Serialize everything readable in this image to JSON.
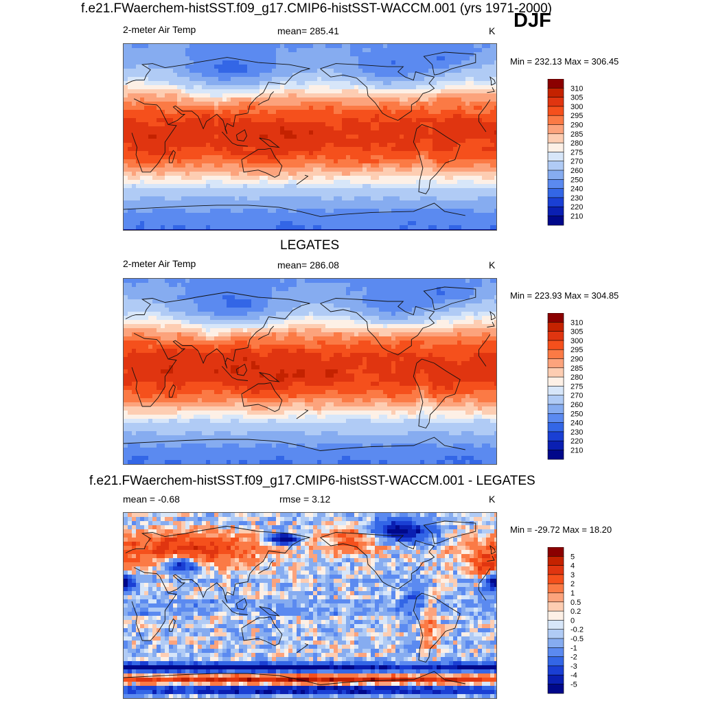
{
  "header": {
    "title": "f.e21.FWaerchem-histSST.f09_g17.CMIP6-histSST-WACCM.001 (yrs 1971-2000)",
    "season": "DJF"
  },
  "chart_data": [
    {
      "type": "heatmap",
      "panel_title": "",
      "variable": "2-meter Air Temp",
      "stat_label": "mean=",
      "stat_value": "285.41",
      "units": "K",
      "min_max": "Min = 232.13 Max = 306.45",
      "colorbar_levels": [
        "310",
        "305",
        "300",
        "295",
        "290",
        "285",
        "280",
        "275",
        "270",
        "260",
        "250",
        "240",
        "230",
        "220",
        "210"
      ],
      "colorbar_colors": [
        "#8b0000",
        "#c42200",
        "#e03510",
        "#f5501c",
        "#fb7a45",
        "#fca37c",
        "#fdcdb2",
        "#fdf0e6",
        "#d7e6f9",
        "#b0cbf5",
        "#86acf0",
        "#5b8af0",
        "#3366e6",
        "#1a3fd4",
        "#0a1fb2",
        "#00088a"
      ],
      "field": "model"
    },
    {
      "type": "heatmap",
      "panel_title": "LEGATES",
      "variable": "2-meter Air Temp",
      "stat_label": "mean=",
      "stat_value": "286.08",
      "units": "K",
      "min_max": "Min = 223.93 Max = 304.85",
      "colorbar_levels": [
        "310",
        "305",
        "300",
        "295",
        "290",
        "285",
        "280",
        "275",
        "270",
        "260",
        "250",
        "240",
        "230",
        "220",
        "210"
      ],
      "colorbar_colors": [
        "#8b0000",
        "#c42200",
        "#e03510",
        "#f5501c",
        "#fb7a45",
        "#fca37c",
        "#fdcdb2",
        "#fdf0e6",
        "#d7e6f9",
        "#b0cbf5",
        "#86acf0",
        "#5b8af0",
        "#3366e6",
        "#1a3fd4",
        "#0a1fb2",
        "#00088a"
      ],
      "field": "obs"
    },
    {
      "type": "heatmap",
      "panel_title": "f.e21.FWaerchem-histSST.f09_g17.CMIP6-histSST-WACCM.001 - LEGATES",
      "variable": "mean =  -0.68",
      "stat_label": "rmse =",
      "stat_value": "3.12",
      "units": "K",
      "min_max": "Min = -29.72 Max =  18.20",
      "colorbar_levels": [
        "5",
        "4",
        "3",
        "2",
        "1",
        "0.5",
        "0.2",
        "0",
        "-0.2",
        "-0.5",
        "-1",
        "-2",
        "-3",
        "-4",
        "-5"
      ],
      "colorbar_colors": [
        "#8b0000",
        "#c42200",
        "#e03510",
        "#f5501c",
        "#fb7a45",
        "#fca37c",
        "#fdcdb2",
        "#fdf0e6",
        "#d7e6f9",
        "#b0cbf5",
        "#86acf0",
        "#5b8af0",
        "#3366e6",
        "#1a3fd4",
        "#0a1fb2",
        "#00088a"
      ],
      "field": "diff"
    }
  ]
}
